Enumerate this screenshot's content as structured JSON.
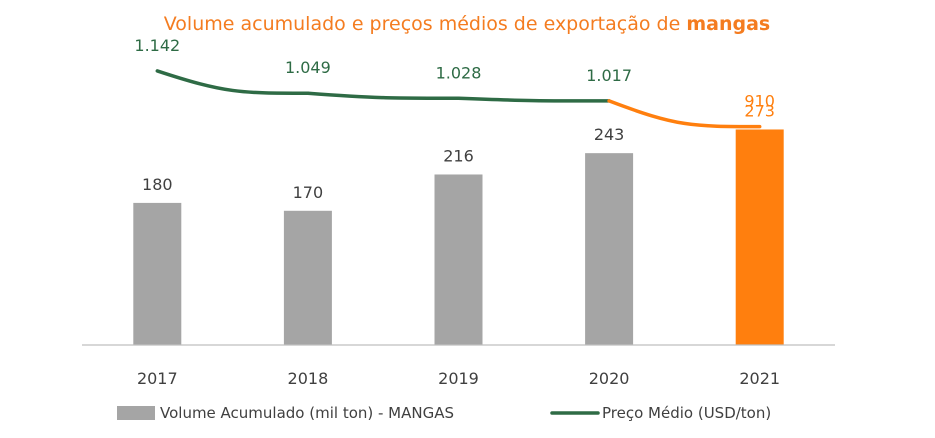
{
  "chart_data": {
    "type": "bar",
    "title_prefix": "Volume acumulado e preços médios de exportação de ",
    "title_emphasis": "mangas",
    "categories": [
      "2017",
      "2018",
      "2019",
      "2020",
      "2021"
    ],
    "series": [
      {
        "name": "Volume Acumulado (mil ton) - MANGAS",
        "kind": "bar",
        "values": [
          180,
          170,
          216,
          243,
          273
        ],
        "labels": [
          "180",
          "170",
          "216",
          "243",
          "273"
        ],
        "color": "#a5a5a5",
        "highlight_color": "#ff7f0e",
        "highlight_index": 4
      },
      {
        "name": "Preço Médio (USD/ton)",
        "kind": "line",
        "values": [
          1142,
          1049,
          1028,
          1017,
          910
        ],
        "labels": [
          "1.142",
          "1.049",
          "1.028",
          "1.017",
          "910"
        ],
        "color": "#2e6b45",
        "highlight_color": "#ff7f0e",
        "highlight_index": 4
      }
    ],
    "bar_ylim": [
      0,
      380
    ],
    "line_ylim": [
      0,
      1250
    ],
    "label_colors": {
      "bar": "#404040",
      "line": "#2e6b45",
      "highlight": "#ff7f0e"
    },
    "axis_color": "#bfbfbf",
    "title_color": "#f47c20",
    "legend_position": "bottom",
    "grid": false
  }
}
